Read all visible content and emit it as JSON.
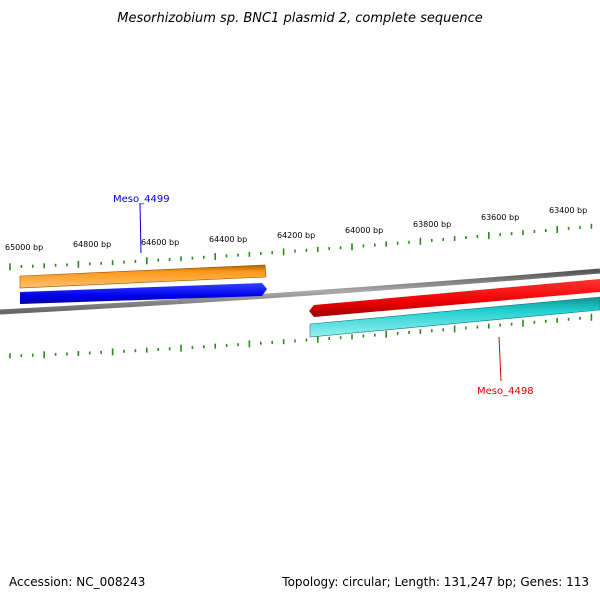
{
  "title": "Mesorhizobium sp. BNC1 plasmid 2, complete sequence",
  "ticks": [
    "65000 bp",
    "64800 bp",
    "64600 bp",
    "64400 bp",
    "64200 bp",
    "64000 bp",
    "63800 bp",
    "63600 bp",
    "63400 bp"
  ],
  "genes": [
    {
      "label": "Meso_4499",
      "color": "#0000dd"
    },
    {
      "label": "Meso_4498",
      "color": "#dd0000"
    }
  ],
  "footer": {
    "accession": "Accession: NC_008243",
    "summary": "Topology: circular; Length: 131,247 bp; Genes: 113"
  },
  "colors": {
    "orange": "#ff8800",
    "blue": "#0000ff",
    "red": "#ff0000",
    "cyan": "#11cccc",
    "backbone": "#888888",
    "tick": "#2a8a1a"
  }
}
